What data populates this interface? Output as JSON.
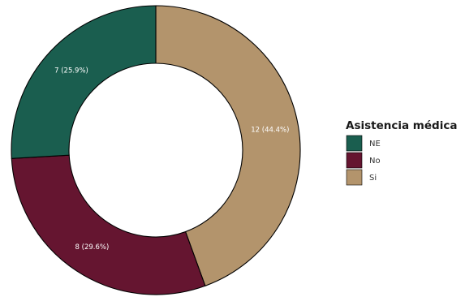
{
  "chart_data": {
    "type": "pie",
    "variant": "donut",
    "title": "",
    "legend_title": "Asistencia médica",
    "legend_position": "right",
    "slices": [
      {
        "category": "Si",
        "value": 12,
        "label": "12 (44.4%)",
        "color": "#B3946C"
      },
      {
        "category": "No",
        "value": 8,
        "label": "8 (29.6%)",
        "color": "#651530"
      },
      {
        "category": "NE",
        "value": 7,
        "label": "7 (25.9%)",
        "color": "#1A5E4F"
      }
    ],
    "legend_items": [
      {
        "label": "NE",
        "color": "#1A5E4F"
      },
      {
        "label": "No",
        "color": "#651530"
      },
      {
        "label": "Si",
        "color": "#B3946C"
      }
    ]
  }
}
